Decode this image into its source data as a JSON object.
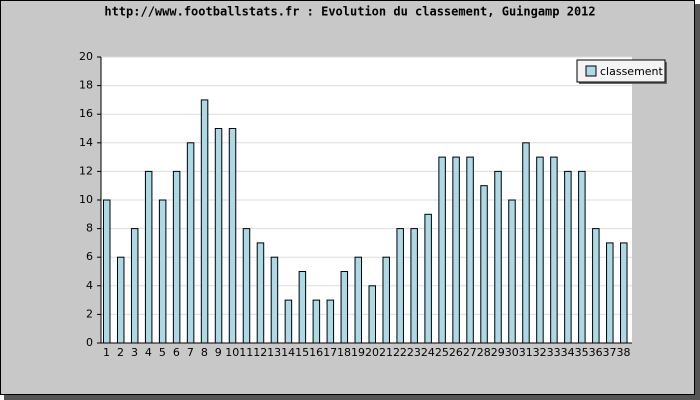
{
  "chart_data": {
    "type": "bar",
    "title": "http://www.footballstats.fr : Evolution du classement, Guingamp 2012",
    "categories": [
      "1",
      "2",
      "3",
      "4",
      "5",
      "6",
      "7",
      "8",
      "9",
      "10",
      "11",
      "12",
      "13",
      "14",
      "15",
      "16",
      "17",
      "18",
      "19",
      "20",
      "21",
      "22",
      "23",
      "24",
      "25",
      "26",
      "27",
      "28",
      "29",
      "30",
      "31",
      "32",
      "33",
      "34",
      "35",
      "36",
      "37",
      "38"
    ],
    "series": [
      {
        "name": "classement",
        "color": "#add8e6",
        "values": [
          10,
          6,
          8,
          12,
          10,
          12,
          14,
          17,
          15,
          15,
          8,
          7,
          6,
          3,
          5,
          3,
          3,
          5,
          6,
          4,
          6,
          8,
          8,
          9,
          13,
          13,
          13,
          11,
          12,
          10,
          14,
          13,
          13,
          12,
          12,
          8,
          7,
          7
        ]
      }
    ],
    "ylim": [
      0,
      20
    ],
    "yticks": [
      0,
      2,
      4,
      6,
      8,
      10,
      12,
      14,
      16,
      18,
      20
    ],
    "grid": true,
    "legend": "top-right"
  }
}
